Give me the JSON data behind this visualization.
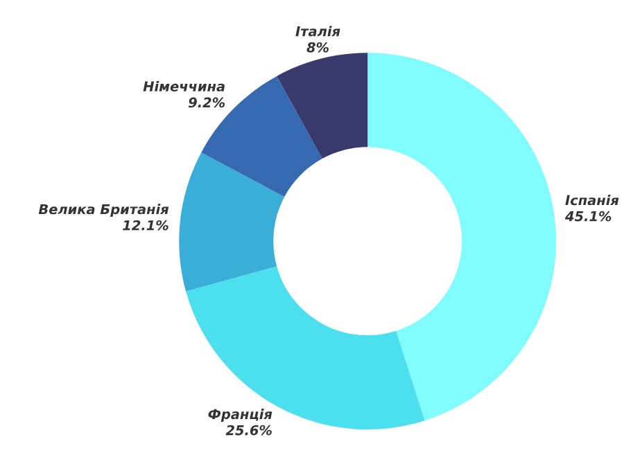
{
  "chart_data": {
    "type": "donut",
    "categories": [
      "Іспанія",
      "Франція",
      "Велика Британія",
      "Німеччина",
      "Італія"
    ],
    "values": [
      45.1,
      25.6,
      12.1,
      9.2,
      8
    ],
    "value_labels": [
      "45.1%",
      "25.6%",
      "12.1%",
      "9.2%",
      "8%"
    ],
    "colors": [
      "#80fcff",
      "#4ce0ef",
      "#3aadd8",
      "#3569b0",
      "#3a396d"
    ],
    "legend": false
  }
}
